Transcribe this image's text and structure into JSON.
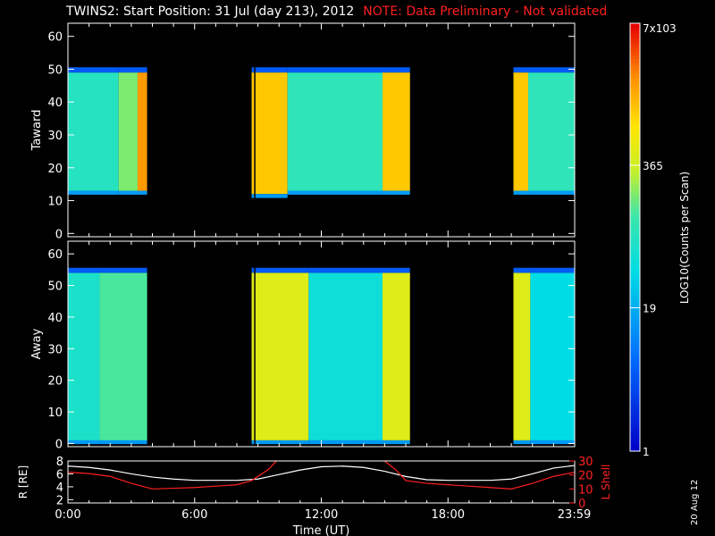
{
  "header": {
    "title": "TWINS2: Start Position: 31 Jul (day 213), 2012",
    "note": "NOTE: Data Preliminary - Not validated"
  },
  "stamp": "20 Aug 12",
  "colors": {
    "background": "#000000",
    "frame": "#ffffff",
    "note": "#ff2020",
    "r_line": "#ffffff",
    "lshell_line": "#ff2020"
  },
  "chart_data": [
    {
      "type": "heatmap",
      "name": "toward",
      "ylabel": "Taward",
      "ylim": [
        -1,
        64
      ],
      "yticks": [
        0,
        10,
        20,
        30,
        40,
        50,
        60
      ],
      "xlim": [
        0,
        24
      ],
      "segments": [
        {
          "t0": 0.0,
          "t1": 2.4,
          "ymin": 13,
          "ymax": 49,
          "level": 0.5
        },
        {
          "t0": 2.4,
          "t1": 3.3,
          "ymin": 13,
          "ymax": 49,
          "level": 0.6
        },
        {
          "t0": 3.3,
          "t1": 3.75,
          "ymin": 13,
          "ymax": 49,
          "level": 0.86
        },
        {
          "t0": 8.7,
          "t1": 10.4,
          "ymin": 12,
          "ymax": 49,
          "level": 0.8
        },
        {
          "t0": 10.4,
          "t1": 14.9,
          "ymin": 13,
          "ymax": 49,
          "level": 0.52
        },
        {
          "t0": 14.9,
          "t1": 16.2,
          "ymin": 13,
          "ymax": 49,
          "level": 0.8
        },
        {
          "t0": 21.1,
          "t1": 21.8,
          "ymin": 13,
          "ymax": 49,
          "level": 0.8
        },
        {
          "t0": 21.8,
          "t1": 24.0,
          "ymin": 13,
          "ymax": 49,
          "level": 0.52
        }
      ]
    },
    {
      "type": "heatmap",
      "name": "away",
      "ylabel": "Away",
      "ylim": [
        -1,
        64
      ],
      "yticks": [
        0,
        10,
        20,
        30,
        40,
        50,
        60
      ],
      "xlim": [
        0,
        24
      ],
      "segments": [
        {
          "t0": 0.0,
          "t1": 1.5,
          "ymin": 1,
          "ymax": 54,
          "level": 0.48
        },
        {
          "t0": 1.5,
          "t1": 3.75,
          "ymin": 1,
          "ymax": 54,
          "level": 0.56
        },
        {
          "t0": 8.7,
          "t1": 11.4,
          "ymin": 1,
          "ymax": 54,
          "level": 0.7
        },
        {
          "t0": 11.4,
          "t1": 14.9,
          "ymin": 1,
          "ymax": 54,
          "level": 0.45
        },
        {
          "t0": 14.9,
          "t1": 16.2,
          "ymin": 1,
          "ymax": 54,
          "level": 0.7
        },
        {
          "t0": 21.1,
          "t1": 21.9,
          "ymin": 1,
          "ymax": 54,
          "level": 0.7
        },
        {
          "t0": 21.9,
          "t1": 24.0,
          "ymin": 1,
          "ymax": 54,
          "level": 0.42
        }
      ]
    },
    {
      "type": "line",
      "name": "ephemeris",
      "xlabel": "Time (UT)",
      "xticks": [
        {
          "t": 0,
          "label": "0:00"
        },
        {
          "t": 6,
          "label": "6:00"
        },
        {
          "t": 12,
          "label": "12:00"
        },
        {
          "t": 18,
          "label": "18:00"
        },
        {
          "t": 23.98,
          "label": "23:59"
        }
      ],
      "left_axis": {
        "label": "R [RE]",
        "ylim": [
          1.5,
          8
        ],
        "ticks": [
          2,
          4,
          6,
          8
        ]
      },
      "right_axis": {
        "label": "L Shell",
        "ylim": [
          0,
          30
        ],
        "ticks": [
          0,
          10,
          20,
          30
        ]
      },
      "series": [
        {
          "name": "R",
          "axis": "left",
          "x": [
            0,
            1,
            2,
            3,
            4,
            5,
            6,
            7,
            8,
            9,
            10,
            11,
            12,
            13,
            14,
            15,
            16,
            17,
            18,
            19,
            20,
            21,
            22,
            23,
            24
          ],
          "y": [
            7.2,
            7.0,
            6.6,
            6.0,
            5.5,
            5.2,
            5.0,
            5.0,
            5.0,
            5.2,
            5.9,
            6.6,
            7.1,
            7.2,
            7.0,
            6.4,
            5.6,
            5.1,
            5.0,
            5.0,
            5.0,
            5.2,
            6.0,
            6.9,
            7.3
          ]
        },
        {
          "name": "L Shell",
          "axis": "right",
          "x": [
            0,
            1,
            2,
            3,
            4,
            5,
            6,
            7,
            8,
            8.7,
            9.5,
            10.0,
            10.5
          ],
          "y": [
            22,
            21,
            19,
            14,
            10,
            10.5,
            11,
            12,
            13,
            16,
            24,
            32,
            34
          ]
        },
        {
          "name": "L Shell 2",
          "axis": "right",
          "x": [
            14.5,
            15.0,
            15.5,
            16.0,
            17,
            18,
            19,
            20,
            21,
            22,
            23,
            24
          ],
          "y": [
            34,
            30,
            24,
            16,
            14,
            13,
            12,
            11,
            10,
            14,
            19,
            22
          ]
        }
      ]
    },
    {
      "type": "colorbar",
      "label": "LOG10(Counts per Scan)",
      "ticks": [
        {
          "pos": 0.0,
          "label": "1"
        },
        {
          "pos": 0.335,
          "label": "19"
        },
        {
          "pos": 0.668,
          "label": "365"
        },
        {
          "pos": 1.0,
          "label": "7x103"
        }
      ]
    }
  ]
}
